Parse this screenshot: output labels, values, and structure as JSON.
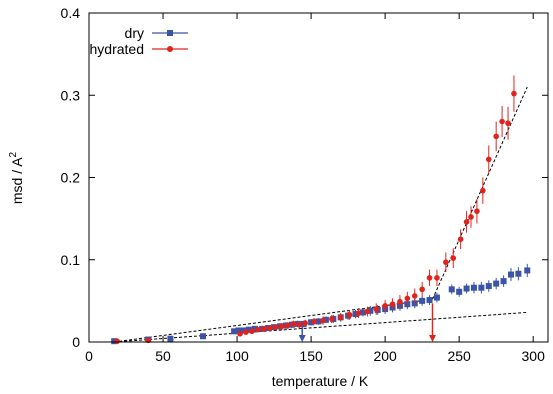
{
  "chart_data": {
    "type": "scatter",
    "xlabel": "temperature / K",
    "ylabel_main": "msd / A",
    "ylabel_superscript": "2",
    "xlim": [
      0,
      310
    ],
    "ylim": [
      0,
      0.4
    ],
    "xticks": [
      0,
      50,
      100,
      150,
      200,
      250,
      300
    ],
    "yticks": [
      0,
      0.1,
      0.2,
      0.3,
      0.4
    ],
    "ytick_labels": [
      "0",
      "0.1",
      "0.2",
      "0.3",
      "0.4"
    ],
    "grid": false,
    "legend_position": "top-left",
    "series": [
      {
        "name": "dry",
        "color": "#3b54a8",
        "marker": "square",
        "points": [
          [
            17,
            0.001,
            0.002
          ],
          [
            40,
            0.003,
            0.002
          ],
          [
            55,
            0.004,
            0.002
          ],
          [
            77,
            0.007,
            0.002
          ],
          [
            98,
            0.013,
            0.003
          ],
          [
            101,
            0.014,
            0.003
          ],
          [
            104,
            0.014,
            0.003
          ],
          [
            108,
            0.015,
            0.003
          ],
          [
            112,
            0.016,
            0.003
          ],
          [
            117,
            0.016,
            0.003
          ],
          [
            121,
            0.017,
            0.003
          ],
          [
            125,
            0.018,
            0.003
          ],
          [
            129,
            0.019,
            0.004
          ],
          [
            133,
            0.02,
            0.004
          ],
          [
            137,
            0.021,
            0.004
          ],
          [
            141,
            0.022,
            0.004
          ],
          [
            145,
            0.022,
            0.004
          ],
          [
            150,
            0.024,
            0.004
          ],
          [
            155,
            0.025,
            0.004
          ],
          [
            160,
            0.027,
            0.004
          ],
          [
            165,
            0.028,
            0.005
          ],
          [
            170,
            0.03,
            0.005
          ],
          [
            175,
            0.032,
            0.005
          ],
          [
            180,
            0.034,
            0.005
          ],
          [
            185,
            0.036,
            0.005
          ],
          [
            190,
            0.038,
            0.006
          ],
          [
            195,
            0.039,
            0.006
          ],
          [
            200,
            0.04,
            0.006
          ],
          [
            205,
            0.042,
            0.006
          ],
          [
            210,
            0.044,
            0.006
          ],
          [
            215,
            0.046,
            0.006
          ],
          [
            220,
            0.047,
            0.006
          ],
          [
            225,
            0.05,
            0.006
          ],
          [
            230,
            0.051,
            0.006
          ],
          [
            235,
            0.054,
            0.006
          ],
          [
            245,
            0.064,
            0.006
          ],
          [
            250,
            0.061,
            0.006
          ],
          [
            255,
            0.065,
            0.006
          ],
          [
            260,
            0.066,
            0.007
          ],
          [
            265,
            0.066,
            0.007
          ],
          [
            270,
            0.068,
            0.007
          ],
          [
            275,
            0.071,
            0.007
          ],
          [
            280,
            0.074,
            0.007
          ],
          [
            285,
            0.082,
            0.008
          ],
          [
            290,
            0.083,
            0.008
          ],
          [
            296,
            0.087,
            0.008
          ]
        ]
      },
      {
        "name": "hydrated",
        "color": "#e0241d",
        "marker": "circle",
        "points": [
          [
            19,
            0.001,
            0.002
          ],
          [
            40,
            0.002,
            0.002
          ],
          [
            102,
            0.01,
            0.003
          ],
          [
            106,
            0.012,
            0.003
          ],
          [
            110,
            0.013,
            0.003
          ],
          [
            114,
            0.015,
            0.003
          ],
          [
            118,
            0.016,
            0.003
          ],
          [
            122,
            0.017,
            0.003
          ],
          [
            126,
            0.018,
            0.003
          ],
          [
            130,
            0.019,
            0.004
          ],
          [
            134,
            0.02,
            0.004
          ],
          [
            138,
            0.022,
            0.004
          ],
          [
            142,
            0.021,
            0.004
          ],
          [
            146,
            0.023,
            0.004
          ],
          [
            152,
            0.025,
            0.004
          ],
          [
            158,
            0.026,
            0.005
          ],
          [
            164,
            0.028,
            0.005
          ],
          [
            170,
            0.03,
            0.005
          ],
          [
            176,
            0.033,
            0.006
          ],
          [
            182,
            0.035,
            0.006
          ],
          [
            188,
            0.037,
            0.006
          ],
          [
            194,
            0.04,
            0.007
          ],
          [
            200,
            0.044,
            0.007
          ],
          [
            205,
            0.046,
            0.007
          ],
          [
            210,
            0.049,
            0.008
          ],
          [
            215,
            0.053,
            0.008
          ],
          [
            220,
            0.056,
            0.009
          ],
          [
            225,
            0.064,
            0.009
          ],
          [
            230,
            0.078,
            0.01
          ],
          [
            235,
            0.078,
            0.01
          ],
          [
            241,
            0.097,
            0.012
          ],
          [
            246,
            0.102,
            0.012
          ],
          [
            251,
            0.125,
            0.012
          ],
          [
            255,
            0.146,
            0.013
          ],
          [
            258,
            0.152,
            0.013
          ],
          [
            262,
            0.159,
            0.015
          ],
          [
            266,
            0.184,
            0.016
          ],
          [
            270,
            0.222,
            0.017
          ],
          [
            275,
            0.25,
            0.018
          ],
          [
            279,
            0.268,
            0.019
          ],
          [
            283,
            0.266,
            0.02
          ],
          [
            287,
            0.302,
            0.022
          ]
        ]
      }
    ],
    "fit_lines": [
      {
        "x": [
          17,
          296
        ],
        "y": [
          0.0,
          0.036
        ]
      },
      {
        "x": [
          17,
          232
        ],
        "y": [
          0.0,
          0.052
        ]
      },
      {
        "x": [
          232,
          296
        ],
        "y": [
          0.052,
          0.31
        ]
      }
    ],
    "arrows": [
      {
        "color": "#3b54a8",
        "x": 144,
        "y_from": 0.022,
        "y_to": 0.0
      },
      {
        "color": "#e0241d",
        "x": 232,
        "y_from": 0.047,
        "y_to": 0.0
      }
    ]
  }
}
